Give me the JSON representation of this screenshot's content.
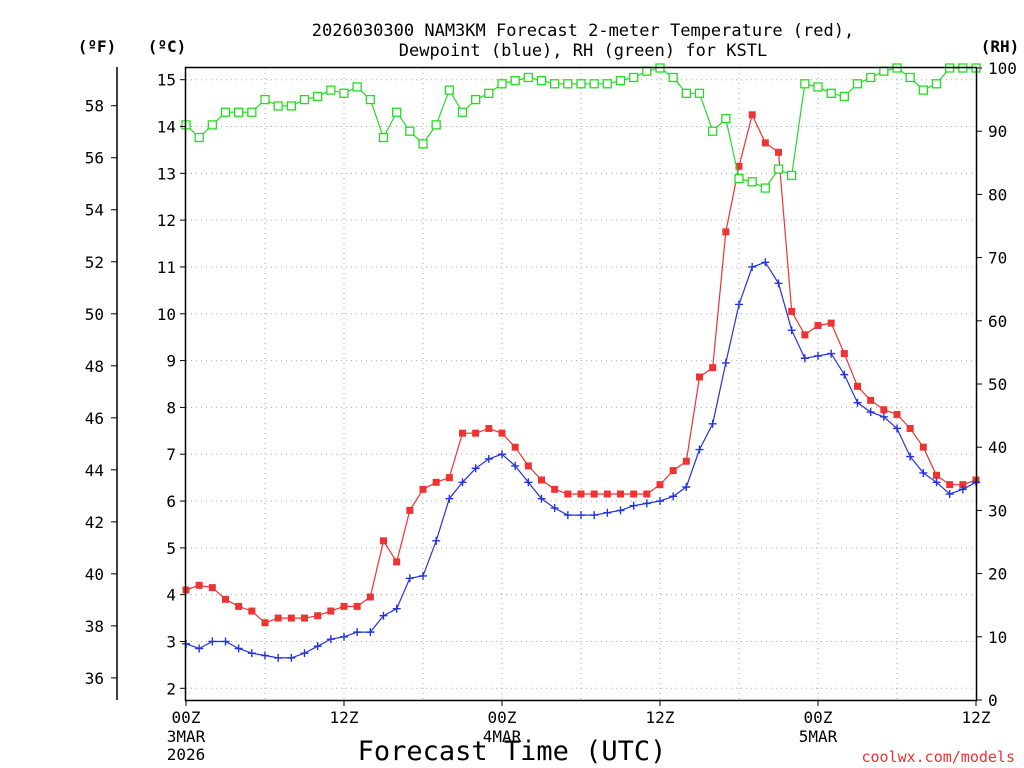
{
  "chart_data": {
    "type": "line",
    "title_line1": "2026030300 NAM3KM Forecast 2-meter Temperature (red),",
    "title_line2": "Dewpoint (blue), RH (green) for KSTL",
    "xlabel": "Forecast Time (UTC)",
    "credit": "coolwx.com/models",
    "unit_f": "(ºF)",
    "unit_c": "(ºC)",
    "unit_rh": "(RH)",
    "x_range_hours": [
      0,
      60
    ],
    "x_ticks": [
      {
        "h": 0,
        "label": "00Z",
        "sub1": "3MAR",
        "sub2": "2026"
      },
      {
        "h": 12,
        "label": "12Z",
        "sub1": "",
        "sub2": ""
      },
      {
        "h": 24,
        "label": "00Z",
        "sub1": "4MAR",
        "sub2": ""
      },
      {
        "h": 36,
        "label": "12Z",
        "sub1": "",
        "sub2": ""
      },
      {
        "h": 48,
        "label": "00Z",
        "sub1": "5MAR",
        "sub2": ""
      },
      {
        "h": 60,
        "label": "12Z",
        "sub1": "",
        "sub2": ""
      }
    ],
    "c_range": [
      1.75,
      15.25
    ],
    "c_ticks": [
      "2",
      "3",
      "4",
      "5",
      "6",
      "7",
      "8",
      "9",
      "10",
      "11",
      "12",
      "13",
      "14",
      "15"
    ],
    "f_ticks": [
      "36",
      "38",
      "40",
      "42",
      "44",
      "46",
      "48",
      "50",
      "52",
      "54",
      "56",
      "58"
    ],
    "rh_range": [
      0,
      100
    ],
    "rh_ticks": [
      "0",
      "10",
      "20",
      "30",
      "40",
      "50",
      "60",
      "70",
      "80",
      "90",
      "100"
    ],
    "colors": {
      "temperature": "#ee3333",
      "dewpoint": "#2233dd",
      "rh": "#22dd22",
      "grid": "#aaaaaa"
    },
    "series": [
      {
        "name": "Temperature (°C)",
        "marker": "filled-square",
        "values": [
          4.1,
          4.2,
          4.15,
          3.9,
          3.75,
          3.65,
          3.4,
          3.5,
          3.5,
          3.5,
          3.55,
          3.65,
          3.75,
          3.75,
          3.95,
          5.15,
          4.7,
          5.8,
          6.25,
          6.4,
          6.5,
          7.45,
          7.45,
          7.55,
          7.45,
          7.15,
          6.75,
          6.45,
          6.25,
          6.15,
          6.15,
          6.15,
          6.15,
          6.15,
          6.15,
          6.15,
          6.35,
          6.65,
          6.85,
          8.65,
          8.85,
          11.75,
          13.15,
          14.25,
          13.65,
          13.45,
          10.05,
          9.55,
          9.75,
          9.8,
          9.15,
          8.45,
          8.15,
          7.95,
          7.85,
          7.55,
          7.15,
          6.55,
          6.35,
          6.35,
          6.45
        ]
      },
      {
        "name": "Dewpoint (°C)",
        "marker": "plus",
        "values": [
          2.95,
          2.85,
          3.0,
          3.0,
          2.85,
          2.75,
          2.7,
          2.65,
          2.65,
          2.75,
          2.9,
          3.05,
          3.1,
          3.2,
          3.2,
          3.55,
          3.7,
          4.35,
          4.4,
          5.15,
          6.05,
          6.4,
          6.7,
          6.9,
          7.0,
          6.75,
          6.4,
          6.05,
          5.85,
          5.7,
          5.7,
          5.7,
          5.75,
          5.8,
          5.9,
          5.95,
          6.0,
          6.1,
          6.3,
          7.1,
          7.65,
          8.95,
          10.2,
          11.0,
          11.1,
          10.65,
          9.65,
          9.05,
          9.1,
          9.15,
          8.7,
          8.1,
          7.9,
          7.8,
          7.55,
          6.95,
          6.6,
          6.4,
          6.15,
          6.25,
          6.4
        ]
      },
      {
        "name": "RH (%)",
        "marker": "open-square",
        "values": [
          91,
          89,
          91,
          93,
          93,
          93,
          95,
          94,
          94,
          95,
          95.5,
          96.5,
          96,
          97,
          95,
          89,
          93,
          90,
          88,
          91,
          96.5,
          93,
          95,
          96,
          97.5,
          98,
          98.5,
          98,
          97.5,
          97.5,
          97.5,
          97.5,
          97.5,
          98,
          98.5,
          99.5,
          100,
          98.5,
          96,
          96,
          90,
          92,
          82.5,
          82,
          81,
          84,
          83,
          97.5,
          97,
          96,
          95.5,
          97.5,
          98.5,
          99.5,
          100,
          98.5,
          96.5,
          97.5,
          101,
          100,
          101
        ]
      }
    ]
  }
}
